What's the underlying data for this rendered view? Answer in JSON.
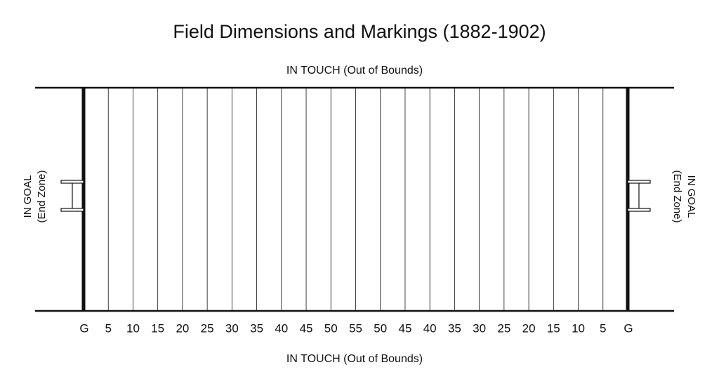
{
  "title": "Field Dimensions and Markings (1882-1902)",
  "top_label": "IN TOUCH (Out of Bounds)",
  "bottom_label": "IN TOUCH (Out of Bounds)",
  "left_end_zone": {
    "line1": "IN GOAL",
    "line2": "(End Zone)"
  },
  "right_end_zone": {
    "line1": "IN GOAL",
    "line2": "(End Zone)"
  },
  "yard_labels": [
    "G",
    "5",
    "10",
    "15",
    "20",
    "25",
    "30",
    "35",
    "40",
    "45",
    "50",
    "55",
    "50",
    "45",
    "40",
    "35",
    "30",
    "25",
    "20",
    "15",
    "10",
    "5",
    "G"
  ]
}
